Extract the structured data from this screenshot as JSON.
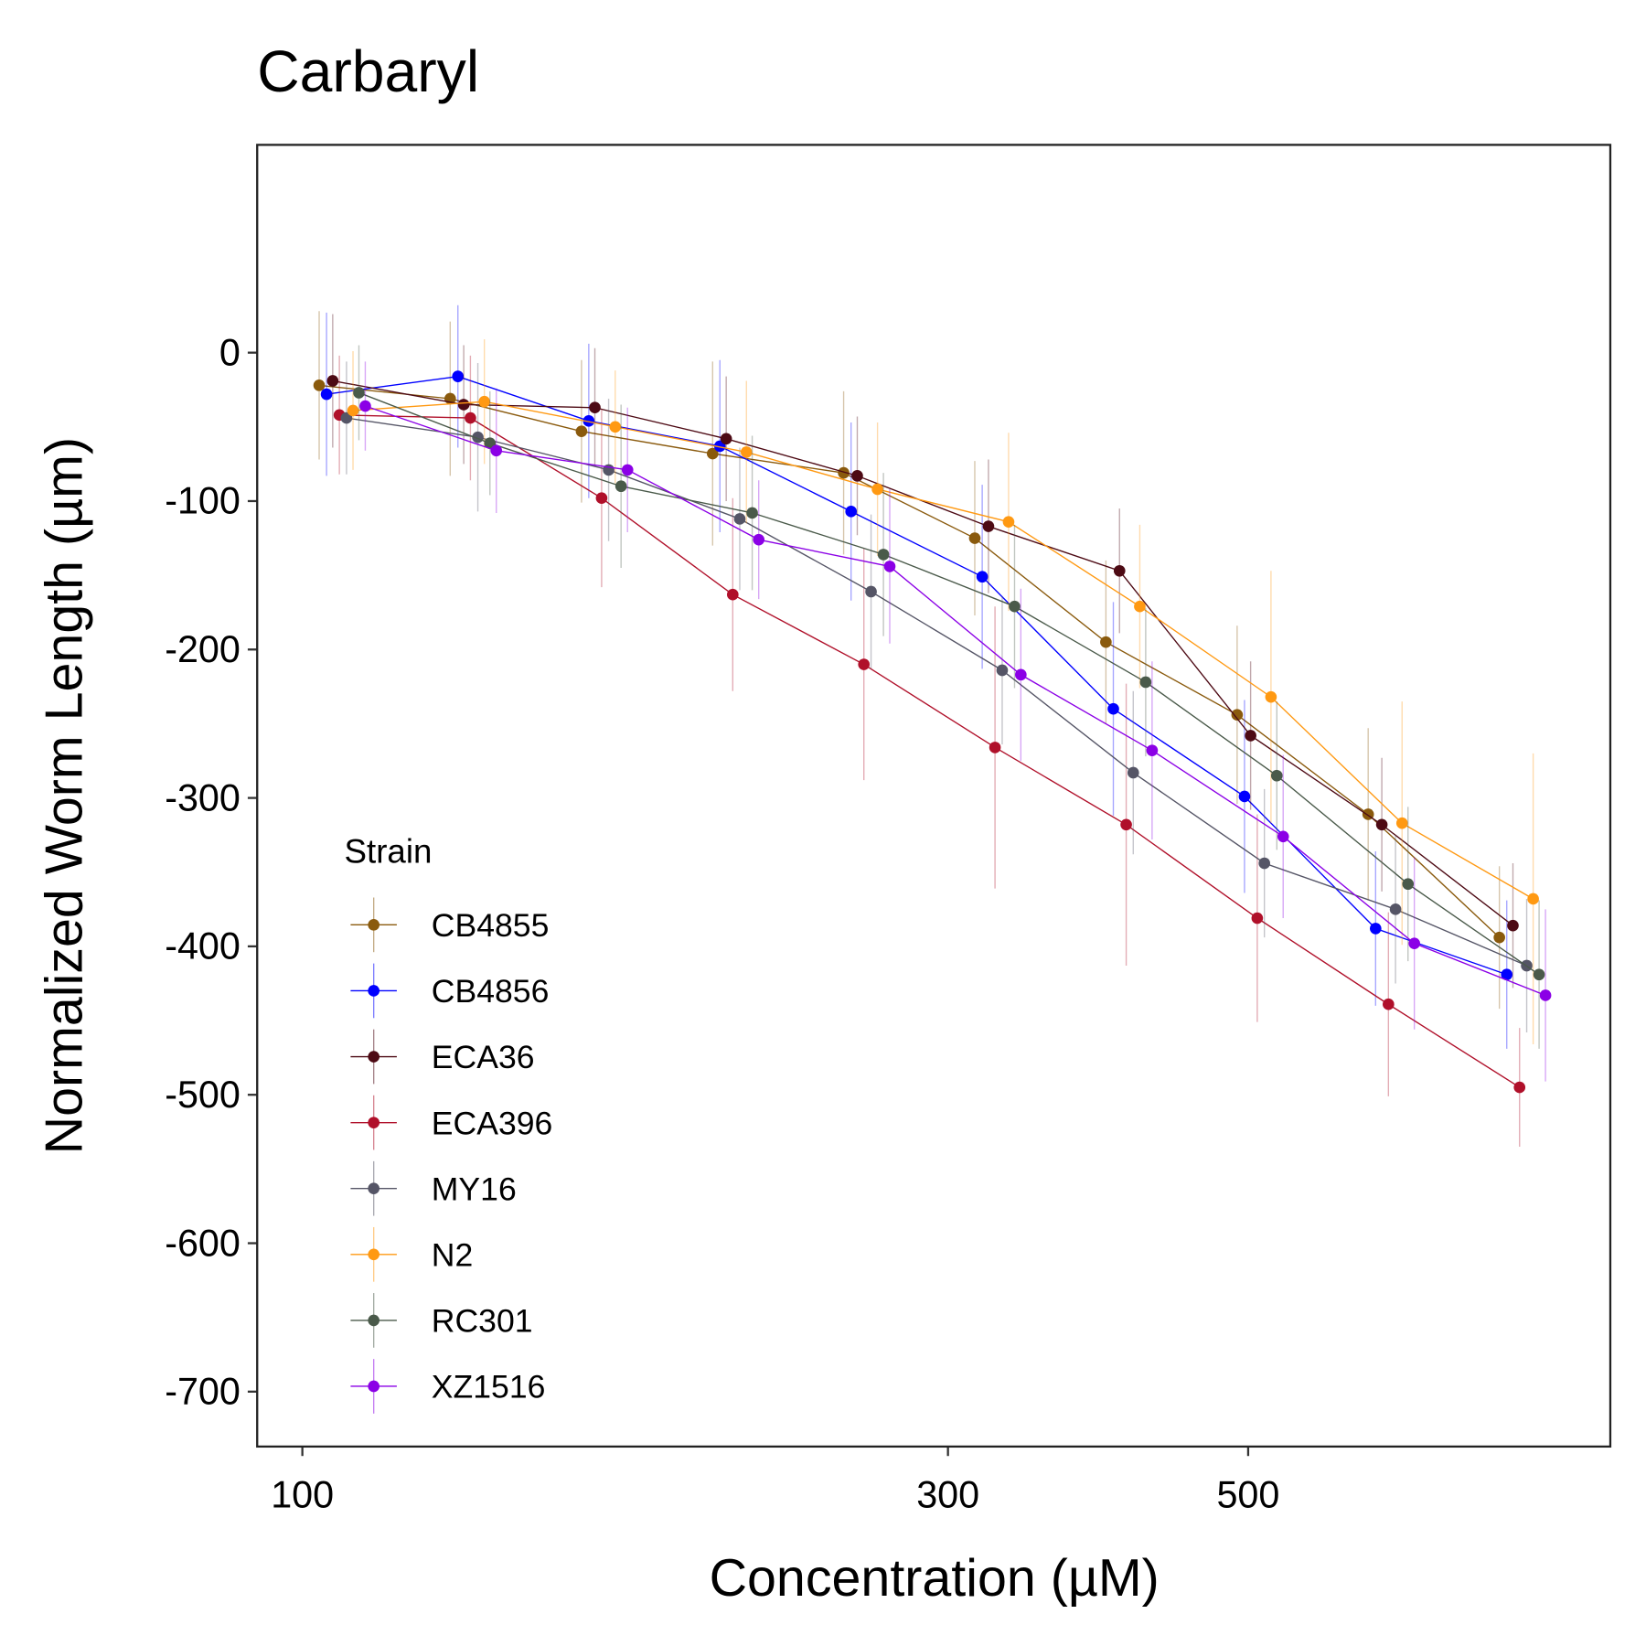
{
  "chart_data": {
    "type": "line",
    "title": "Carbaryl",
    "x_label": "Concentration (µM)",
    "y_label": "Normalized Worm Length (µm)",
    "legend_title": "Strain",
    "x_scale": "log",
    "xlim": [
      92.6,
      926
    ],
    "ylim": [
      -737,
      140
    ],
    "xticks": [
      100,
      300,
      500
    ],
    "yticks": [
      0,
      -100,
      -200,
      -300,
      -400,
      -500,
      -600,
      -700
    ],
    "legend_position": "bottom-left",
    "series": [
      {
        "name": "CB4855",
        "color": "#8a5a0d",
        "x": [
          102.9,
          128.6,
          160.8,
          201.0,
          251.2,
          314.0,
          392.5,
          490.7,
          613.3,
          766.7
        ],
        "values": [
          -22,
          -31,
          -53,
          -68,
          -81,
          -125,
          -195,
          -244,
          -311,
          -394
        ],
        "errors": [
          50,
          52,
          48,
          62,
          55,
          52,
          55,
          60,
          58,
          48
        ]
      },
      {
        "name": "CB4856",
        "color": "#0000ff",
        "x": [
          104.2,
          130.3,
          162.8,
          203.5,
          254.4,
          318.0,
          397.5,
          496.9,
          621.1,
          776.4
        ],
        "values": [
          -28,
          -16,
          -46,
          -63,
          -107,
          -151,
          -240,
          -299,
          -388,
          -419
        ],
        "errors": [
          55,
          48,
          52,
          58,
          60,
          62,
          72,
          65,
          52,
          50
        ]
      },
      {
        "name": "ECA36",
        "color": "#4d0a14",
        "x": [
          105.3,
          131.6,
          164.5,
          205.7,
          257.1,
          321.4,
          401.7,
          502.1,
          627.7,
          784.6
        ],
        "values": [
          -19,
          -35,
          -37,
          -58,
          -83,
          -117,
          -147,
          -258,
          -318,
          -386
        ],
        "errors": [
          45,
          40,
          40,
          42,
          40,
          45,
          42,
          50,
          45,
          42
        ]
      },
      {
        "name": "ECA396",
        "color": "#b0102a",
        "x": [
          106.5,
          133.1,
          166.4,
          208.0,
          260.0,
          325.0,
          406.3,
          507.8,
          634.8,
          793.5
        ],
        "values": [
          -42,
          -44,
          -98,
          -163,
          -210,
          -266,
          -318,
          -381,
          -439,
          -495
        ],
        "errors": [
          40,
          42,
          60,
          65,
          78,
          95,
          95,
          70,
          62,
          40
        ]
      },
      {
        "name": "MY16",
        "color": "#555566",
        "x": [
          107.8,
          134.8,
          168.4,
          210.5,
          263.2,
          329.0,
          411.2,
          514.0,
          642.5,
          803.2
        ],
        "values": [
          -44,
          -57,
          -79,
          -112,
          -161,
          -214,
          -283,
          -344,
          -375,
          -413
        ],
        "errors": [
          38,
          50,
          48,
          48,
          52,
          50,
          55,
          50,
          50,
          45
        ]
      },
      {
        "name": "N2",
        "color": "#ff9912",
        "x": [
          109.0,
          136.3,
          170.3,
          212.9,
          266.1,
          332.6,
          415.8,
          519.8,
          649.7,
          812.1
        ],
        "values": [
          -39,
          -33,
          -50,
          -67,
          -92,
          -114,
          -171,
          -232,
          -317,
          -368
        ],
        "errors": [
          40,
          42,
          38,
          48,
          45,
          60,
          55,
          85,
          82,
          98
        ]
      },
      {
        "name": "RC301",
        "color": "#4a5a4a",
        "x": [
          110.1,
          137.6,
          172.0,
          215.0,
          268.8,
          336.0,
          420.0,
          525.0,
          656.3,
          820.3
        ],
        "values": [
          -27,
          -61,
          -90,
          -108,
          -136,
          -171,
          -222,
          -285,
          -358,
          -419
        ],
        "errors": [
          32,
          35,
          55,
          52,
          55,
          55,
          50,
          50,
          52,
          50
        ]
      },
      {
        "name": "XZ1516",
        "color": "#8b00e6",
        "x": [
          111.3,
          139.1,
          173.9,
          217.4,
          271.7,
          339.6,
          424.6,
          530.7,
          663.4,
          829.3
        ],
        "values": [
          -36,
          -66,
          -79,
          -126,
          -144,
          -217,
          -268,
          -326,
          -398,
          -433
        ],
        "errors": [
          30,
          42,
          42,
          40,
          52,
          58,
          60,
          55,
          58,
          58
        ]
      }
    ]
  }
}
